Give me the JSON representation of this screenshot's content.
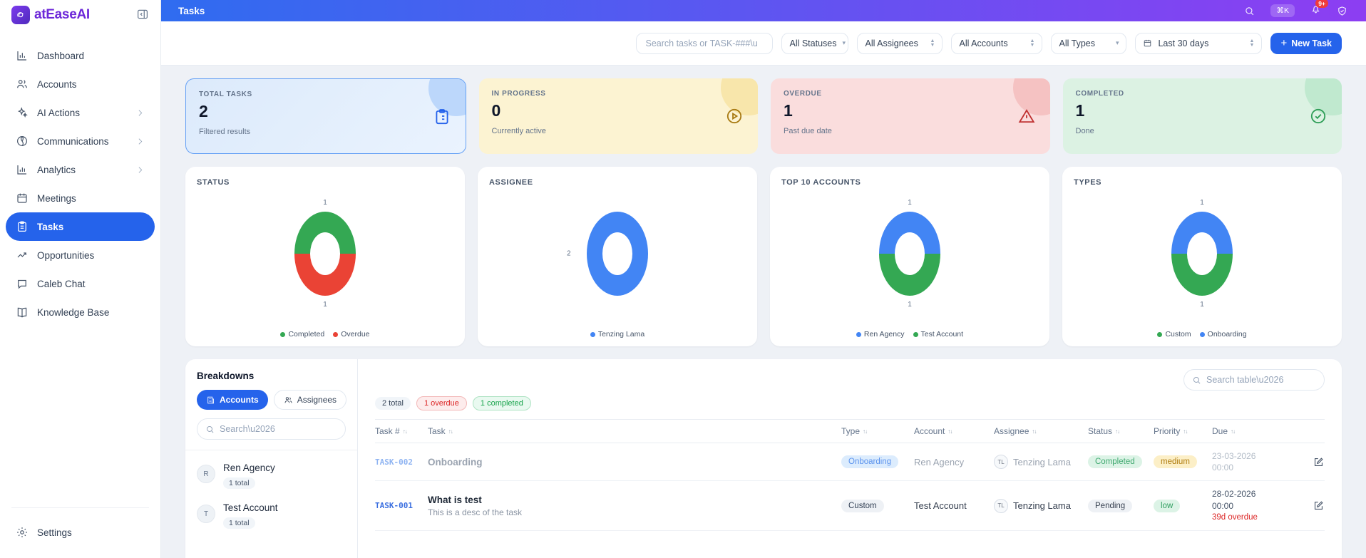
{
  "brand": {
    "name": "atEaseAI"
  },
  "header": {
    "title": "Tasks",
    "shortcut_badge": "⌘K",
    "notification_count": "9+"
  },
  "sidebar": {
    "items": [
      {
        "label": "Dashboard"
      },
      {
        "label": "Accounts"
      },
      {
        "label": "AI Actions"
      },
      {
        "label": "Communications"
      },
      {
        "label": "Analytics"
      },
      {
        "label": "Meetings"
      },
      {
        "label": "Tasks"
      },
      {
        "label": "Opportunities"
      },
      {
        "label": "Caleb Chat"
      },
      {
        "label": "Knowledge Base"
      }
    ],
    "settings_label": "Settings"
  },
  "filters": {
    "search_placeholder": "Search tasks or TASK-###\\u",
    "statuses": "All Statuses",
    "assignees": "All Assignees",
    "accounts": "All Accounts",
    "types": "All Types",
    "date_range": "Last 30 days",
    "new_task_label": "New Task"
  },
  "stats": [
    {
      "label": "TOTAL TASKS",
      "value": "2",
      "caption": "Filtered results"
    },
    {
      "label": "IN PROGRESS",
      "value": "0",
      "caption": "Currently active"
    },
    {
      "label": "OVERDUE",
      "value": "1",
      "caption": "Past due date"
    },
    {
      "label": "COMPLETED",
      "value": "1",
      "caption": "Done"
    }
  ],
  "chart_data": [
    {
      "type": "donut",
      "title": "STATUS",
      "segments": [
        {
          "label": "Completed",
          "value": 1,
          "color": "#34a853"
        },
        {
          "label": "Overdue",
          "value": 1,
          "color": "#ea4335"
        }
      ],
      "value_labels": [
        {
          "text": "1",
          "pos": "top"
        },
        {
          "text": "1",
          "pos": "bottom"
        }
      ]
    },
    {
      "type": "donut",
      "title": "ASSIGNEE",
      "segments": [
        {
          "label": "Tenzing Lama",
          "value": 2,
          "color": "#4285f4"
        }
      ],
      "value_labels": [
        {
          "text": "2",
          "pos": "left"
        }
      ]
    },
    {
      "type": "donut",
      "title": "TOP 10 ACCOUNTS",
      "segments": [
        {
          "label": "Ren Agency",
          "value": 1,
          "color": "#4285f4"
        },
        {
          "label": "Test Account",
          "value": 1,
          "color": "#34a853"
        }
      ],
      "value_labels": [
        {
          "text": "1",
          "pos": "top"
        },
        {
          "text": "1",
          "pos": "bottom"
        }
      ]
    },
    {
      "type": "donut",
      "title": "TYPES",
      "legend_reversed": true,
      "segments": [
        {
          "label": "Onboarding",
          "value": 1,
          "color": "#4285f4"
        },
        {
          "label": "Custom",
          "value": 1,
          "color": "#34a853"
        }
      ],
      "value_labels": [
        {
          "text": "1",
          "pos": "top"
        },
        {
          "text": "1",
          "pos": "bottom"
        }
      ]
    }
  ],
  "breakdowns": {
    "title": "Breakdowns",
    "tabs": [
      {
        "label": "Accounts"
      },
      {
        "label": "Assignees"
      }
    ],
    "search_placeholder": "Search\\u2026",
    "items": [
      {
        "initial": "R",
        "name": "Ren Agency",
        "count": "1 total"
      },
      {
        "initial": "T",
        "name": "Test Account",
        "count": "1 total"
      }
    ]
  },
  "table": {
    "search_placeholder": "Search table\\u2026",
    "summary": {
      "total": "2 total",
      "overdue": "1 overdue",
      "completed": "1 completed"
    },
    "columns": [
      "Task #",
      "Task",
      "Type",
      "Account",
      "Assignee",
      "Status",
      "Priority",
      "Due"
    ],
    "rows": [
      {
        "id": "TASK-002",
        "title": "Onboarding",
        "description": "",
        "type": "Onboarding",
        "account": "Ren Agency",
        "assignee_initials": "TL",
        "assignee": "Tenzing Lama",
        "status": "Completed",
        "priority": "medium",
        "due_date": "23-03-2026",
        "due_time": "00:00",
        "overdue": ""
      },
      {
        "id": "TASK-001",
        "title": "What is test",
        "description": "This is a desc of the task",
        "type": "Custom",
        "account": "Test Account",
        "assignee_initials": "TL",
        "assignee": "Tenzing Lama",
        "status": "Pending",
        "priority": "low",
        "due_date": "28-02-2026",
        "due_time": "00:00",
        "overdue": "39d overdue"
      }
    ]
  },
  "colors": {
    "accent_blue": "#2563eb",
    "chart_blue": "#4285f4",
    "chart_green": "#34a853",
    "chart_red": "#ea4335",
    "brand_purple": "#6d28d9"
  }
}
